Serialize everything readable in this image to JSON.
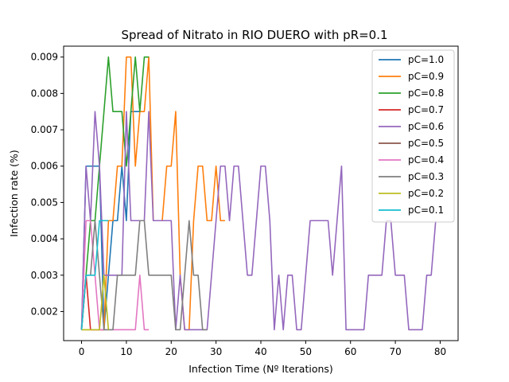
{
  "chart_data": {
    "type": "line",
    "title": "Spread of Nitrato in RIO DUERO with pR=0.1",
    "xlabel": "Infection Time (Nº Iterations)",
    "ylabel": "Infection rate (%)",
    "xlim": [
      -4,
      84
    ],
    "ylim": [
      0.0012,
      0.0093
    ],
    "xticks": [
      0,
      10,
      20,
      30,
      40,
      50,
      60,
      70,
      80
    ],
    "yticks": [
      0.002,
      0.003,
      0.004,
      0.005,
      0.006,
      0.007,
      0.008,
      0.009
    ],
    "ytick_labels": [
      "0.002",
      "0.003",
      "0.004",
      "0.005",
      "0.006",
      "0.007",
      "0.008",
      "0.009"
    ],
    "grid": false,
    "legend_position": "top-right",
    "series": [
      {
        "name": "pC=1.0",
        "color": "#1f77b4",
        "x": [
          0,
          1,
          2,
          3,
          4,
          5,
          6,
          7,
          8,
          9,
          10,
          11,
          12,
          13
        ],
        "y": [
          0.0015,
          0.006,
          0.006,
          0.006,
          0.006,
          0.0015,
          0.003,
          0.0045,
          0.0045,
          0.006,
          0.0045,
          0.0075,
          0.0075,
          0.0075
        ]
      },
      {
        "name": "pC=0.9",
        "color": "#ff7f0e",
        "x": [
          0,
          1,
          2,
          3,
          4,
          5,
          6,
          7,
          8,
          9,
          10,
          11,
          12,
          13,
          14,
          15,
          16,
          17,
          18,
          19,
          20,
          21,
          22,
          23,
          24,
          25,
          26,
          27,
          28,
          29,
          30,
          31,
          32
        ],
        "y": [
          0.0015,
          0.0015,
          0.0015,
          0.0015,
          0.0015,
          0.0015,
          0.0045,
          0.0045,
          0.006,
          0.006,
          0.009,
          0.009,
          0.006,
          0.0075,
          0.0075,
          0.009,
          0.0045,
          0.0045,
          0.0045,
          0.006,
          0.006,
          0.0075,
          0.003,
          0.0015,
          0.0015,
          0.0045,
          0.006,
          0.006,
          0.0045,
          0.0045,
          0.006,
          0.0045,
          0.0045
        ]
      },
      {
        "name": "pC=0.8",
        "color": "#2ca02c",
        "x": [
          0,
          1,
          2,
          3,
          4,
          5,
          6,
          7,
          8,
          9,
          10,
          11,
          12,
          13,
          14,
          15
        ],
        "y": [
          0.0015,
          0.003,
          0.0045,
          0.0045,
          0.006,
          0.0075,
          0.009,
          0.0075,
          0.0075,
          0.0075,
          0.006,
          0.0075,
          0.009,
          0.0075,
          0.009,
          0.009
        ]
      },
      {
        "name": "pC=0.7",
        "color": "#d62728",
        "x": [
          0,
          1,
          2,
          3,
          4,
          5
        ],
        "y": [
          0.0015,
          0.003,
          0.0015,
          0.0015,
          0.0015,
          0.0015
        ]
      },
      {
        "name": "pC=0.6",
        "color": "#9467bd",
        "x": [
          0,
          1,
          2,
          3,
          4,
          5,
          6,
          7,
          8,
          9,
          10,
          11,
          12,
          13,
          14,
          15,
          16,
          17,
          18,
          19,
          20,
          21,
          22,
          23,
          24,
          25,
          26,
          27,
          28,
          29,
          30,
          31,
          32,
          33,
          34,
          35,
          36,
          37,
          38,
          39,
          40,
          41,
          42,
          43,
          44,
          45,
          46,
          47,
          48,
          49,
          50,
          51,
          52,
          53,
          54,
          55,
          56,
          57,
          58,
          59,
          60,
          61,
          62,
          63,
          64,
          65,
          66,
          67,
          68,
          69,
          70,
          71,
          72,
          73,
          74,
          75,
          76,
          77,
          78,
          79
        ],
        "y": [
          0.0015,
          0.006,
          0.0045,
          0.0075,
          0.006,
          0.003,
          0.003,
          0.003,
          0.003,
          0.003,
          0.0075,
          0.0045,
          0.0045,
          0.0045,
          0.0045,
          0.0075,
          0.0045,
          0.0045,
          0.0045,
          0.0045,
          0.0045,
          0.0015,
          0.003,
          0.0015,
          0.0015,
          0.0015,
          0.0015,
          0.0015,
          0.0015,
          0.003,
          0.0045,
          0.006,
          0.006,
          0.0045,
          0.006,
          0.006,
          0.0045,
          0.003,
          0.003,
          0.0045,
          0.006,
          0.006,
          0.0045,
          0.0015,
          0.003,
          0.0015,
          0.003,
          0.003,
          0.0015,
          0.0015,
          0.003,
          0.0045,
          0.0045,
          0.0045,
          0.0045,
          0.0045,
          0.003,
          0.0045,
          0.006,
          0.0015,
          0.0015,
          0.0015,
          0.0015,
          0.0015,
          0.003,
          0.003,
          0.003,
          0.003,
          0.0045,
          0.0045,
          0.003,
          0.003,
          0.003,
          0.0015,
          0.0015,
          0.0015,
          0.0015,
          0.003,
          0.003,
          0.0045
        ]
      },
      {
        "name": "pC=0.5",
        "color": "#8c564b",
        "x": [],
        "y": []
      },
      {
        "name": "pC=0.4",
        "color": "#e377c2",
        "x": [
          0,
          1,
          2,
          3,
          4,
          5,
          6,
          7,
          8,
          9,
          10,
          11,
          12,
          13,
          14,
          15
        ],
        "y": [
          0.0015,
          0.0045,
          0.0045,
          0.003,
          0.0015,
          0.0015,
          0.0015,
          0.0015,
          0.0015,
          0.0015,
          0.0015,
          0.0015,
          0.0015,
          0.003,
          0.0015,
          0.0015
        ]
      },
      {
        "name": "pC=0.3",
        "color": "#7f7f7f",
        "x": [
          0,
          1,
          2,
          3,
          4,
          5,
          6,
          7,
          8,
          9,
          10,
          11,
          12,
          13,
          14,
          15,
          16,
          17,
          18,
          19,
          20,
          21,
          22,
          23,
          24,
          25,
          26,
          27,
          28
        ],
        "y": [
          0.0015,
          0.003,
          0.003,
          0.0045,
          0.003,
          0.0015,
          0.0015,
          0.0015,
          0.003,
          0.003,
          0.003,
          0.003,
          0.003,
          0.0045,
          0.0045,
          0.003,
          0.003,
          0.003,
          0.003,
          0.003,
          0.003,
          0.0015,
          0.0015,
          0.003,
          0.0045,
          0.003,
          0.003,
          0.0015,
          0.0015
        ]
      },
      {
        "name": "pC=0.2",
        "color": "#bcbd22",
        "x": [
          0,
          1,
          2,
          3,
          4,
          5,
          6
        ],
        "y": [
          0.0015,
          0.0015,
          0.0015,
          0.0015,
          0.0015,
          0.003,
          0.0015
        ]
      },
      {
        "name": "pC=0.1",
        "color": "#17becf",
        "x": [
          0,
          1,
          2,
          3,
          4,
          5,
          6
        ],
        "y": [
          0.0015,
          0.003,
          0.003,
          0.003,
          0.0045,
          0.0045,
          0.0045
        ]
      }
    ]
  }
}
